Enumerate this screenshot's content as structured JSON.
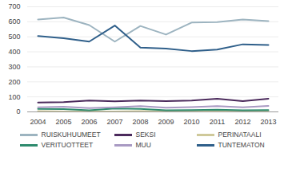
{
  "chart_data": {
    "type": "line",
    "categories": [
      "2004",
      "2005",
      "2006",
      "2007",
      "2008",
      "2009",
      "2010",
      "2011",
      "2012",
      "2013"
    ],
    "series": [
      {
        "name": "RUISKUHUUMEET",
        "color": "#9db4c0",
        "values": [
          615,
          628,
          578,
          468,
          572,
          515,
          595,
          598,
          615,
          605
        ]
      },
      {
        "name": "SEKSI",
        "color": "#4b2a5c",
        "values": [
          62,
          65,
          75,
          70,
          75,
          72,
          75,
          88,
          72,
          88
        ]
      },
      {
        "name": "PERINATAALI",
        "color": "#cfc99a",
        "values": [
          5,
          3,
          2,
          3,
          5,
          4,
          5,
          3,
          4,
          2
        ]
      },
      {
        "name": "VERITUOTTEET",
        "color": "#2e8b6e",
        "values": [
          20,
          18,
          10,
          22,
          20,
          10,
          12,
          15,
          10,
          12
        ]
      },
      {
        "name": "MUU",
        "color": "#a99ac3",
        "values": [
          30,
          35,
          25,
          30,
          38,
          28,
          32,
          38,
          30,
          40
        ]
      },
      {
        "name": "TUNTEMATON",
        "color": "#2f5f8a",
        "values": [
          505,
          490,
          468,
          575,
          428,
          422,
          405,
          415,
          450,
          445
        ]
      }
    ],
    "ylim": [
      0,
      700
    ],
    "yticks": [
      0,
      100,
      200,
      300,
      400,
      500,
      600,
      700
    ],
    "grid": true
  }
}
